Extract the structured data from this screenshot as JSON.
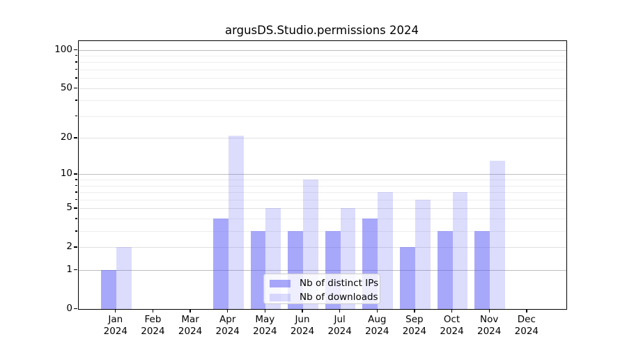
{
  "chart_data": {
    "type": "bar",
    "title": "argusDS.Studio.permissions 2024",
    "categories": [
      "Jan",
      "Feb",
      "Mar",
      "Apr",
      "May",
      "Jun",
      "Jul",
      "Aug",
      "Sep",
      "Oct",
      "Nov",
      "Dec"
    ],
    "category_year": "2024",
    "series": [
      {
        "name": "Nb of distinct IPs",
        "color": "rgba(88,88,246,0.52)",
        "values": [
          1,
          0,
          0,
          4,
          3,
          3,
          3,
          4,
          2,
          3,
          3,
          0
        ]
      },
      {
        "name": "Nb of downloads",
        "color": "rgba(88,88,246,0.21)",
        "values": [
          2,
          0,
          0,
          21,
          5,
          9,
          5,
          7,
          6,
          7,
          13,
          0
        ]
      }
    ],
    "xlabel": "",
    "ylabel": "",
    "y_scale": "log1p",
    "y_max": 117,
    "ylim": [
      0,
      117
    ],
    "y_ticks_major": [
      0,
      1,
      2,
      5,
      10,
      20,
      50,
      100
    ],
    "y_ticks_minor": [
      3,
      4,
      6,
      7,
      8,
      9,
      30,
      40,
      60,
      70,
      80,
      90
    ],
    "grid": "horizontal",
    "legend_position": "lower center",
    "colors": {
      "grid_power10": "#bdbdbd",
      "grid_labeled": "#e1e1e1",
      "grid_minor": "#eeeeee",
      "spine": "#000000",
      "background": "#ffffff"
    }
  }
}
